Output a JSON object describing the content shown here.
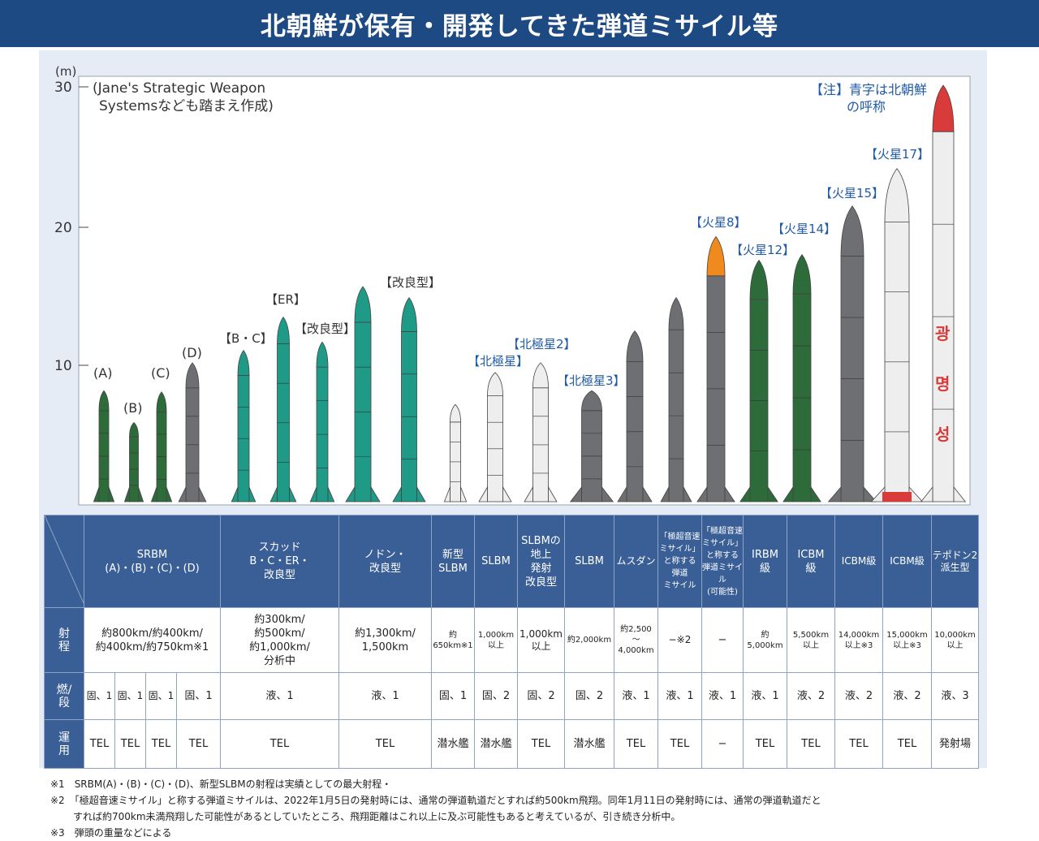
{
  "title": "北朝鮮が保有・開発してきた弾道ミサイル等",
  "chart": {
    "y_unit": "(m)",
    "y_ticks": [
      "30",
      "20",
      "10"
    ],
    "source_note_line1": "(Jane's Strategic Weapon",
    "source_note_line2": "Systemsなども踏まえ作成)",
    "legend_note_line1": "【注】青字は北朝鮮",
    "legend_note_line2": "の呼称",
    "colors": {
      "green": "#2e6b3a",
      "teal": "#1f9a87",
      "gray": "#6d6f72",
      "white": "#eeeeee",
      "orange": "#f08a1e",
      "red": "#d93a3a",
      "label_blue": "#1f5aa8"
    }
  },
  "missile_labels": [
    "(A)",
    "(B)",
    "(C)",
    "(D)",
    "【B・C】",
    "【ER】",
    "【改良型】",
    "【改良型】",
    "【北極星】",
    "【北極星2】",
    "【北極星3】",
    "【火星8】",
    "【火星12】",
    "【火星14】",
    "【火星15】",
    "【火星17】"
  ],
  "missile_heights_m": [
    8,
    5.7,
    7.9,
    10,
    10.9,
    13.3,
    11.5,
    15.5,
    14.7,
    7,
    9.3,
    10,
    8,
    12.3,
    14.7,
    19.1,
    17.4,
    17.8,
    21.3,
    24,
    30
  ],
  "hangul_text": [
    "광",
    "명",
    "성"
  ],
  "table": {
    "headers": [
      "SRBM\n(A)・(B)・(C)・(D)",
      "スカッド\nB・C・ER・\n改良型",
      "ノドン・\n改良型",
      "新型\nSLBM",
      "SLBM",
      "SLBMの\n地上\n発射\n改良型",
      "SLBM",
      "ムスダン",
      "「極超音速\nミサイル」\nと称する\n弾道\nミサイル",
      "「極超音速\nミサイル」\nと称する\n弾道ミサイル\n(可能性)",
      "IRBM\n級",
      "ICBM\n級",
      "ICBM級",
      "ICBM級",
      "テポドン2\n派生型"
    ],
    "row_heads": [
      "射\n程",
      "燃/\n段",
      "運\n用"
    ],
    "range": {
      "srbm": "約800km/約400km/\n約400km/約750km※1",
      "scud": "約300km/\n約500km/\n約1,000km/\n分析中",
      "nodong": "約1,300km/\n1,500km",
      "c4": "約650km※1",
      "c5": "1,000km\n以上",
      "c6": "1,000km\n以上",
      "c7": "約2,000km",
      "c8": "約2,500\n〜\n4,000km",
      "c9": "−※2",
      "c10": "−",
      "c11": "約5,000km",
      "c12": "5,500km\n以上",
      "c13": "14,000km\n以上※3",
      "c14": "15,000km\n以上※3",
      "c15": "10,000km\n以上"
    },
    "fuel": [
      "固、1",
      "固、1",
      "固、1",
      "固、1",
      "液、1",
      "液、1",
      "固、1",
      "固、2",
      "固、2",
      "固、2",
      "液、1",
      "液、1",
      "液、1",
      "液、1",
      "液、2",
      "液、2",
      "液、2",
      "液、3"
    ],
    "ops": [
      "TEL",
      "TEL",
      "TEL",
      "TEL",
      "TEL",
      "TEL",
      "潜水艦",
      "潜水艦",
      "TEL",
      "潜水艦",
      "TEL",
      "TEL",
      "−",
      "TEL",
      "TEL",
      "TEL",
      "TEL",
      "発射場"
    ]
  },
  "notes": {
    "n1": "※1　SRBM(A)・(B)・(C)・(D)、新型SLBMの射程は実績としての最大射程・",
    "n2a": "※2　「極超音速ミサイル」と称する弾道ミサイルは、2022年1月5日の発射時には、通常の弾道軌道だとすれば約500km飛翔。同年1月11日の発射時には、通常の弾道軌道だと",
    "n2b": "すれば約700km未満飛翔した可能性があるとしていたところ、飛翔距離はこれ以上に及ぶ可能性もあると考えているが、引き続き分析中。",
    "n3": "※3　弾頭の重量などによる"
  }
}
